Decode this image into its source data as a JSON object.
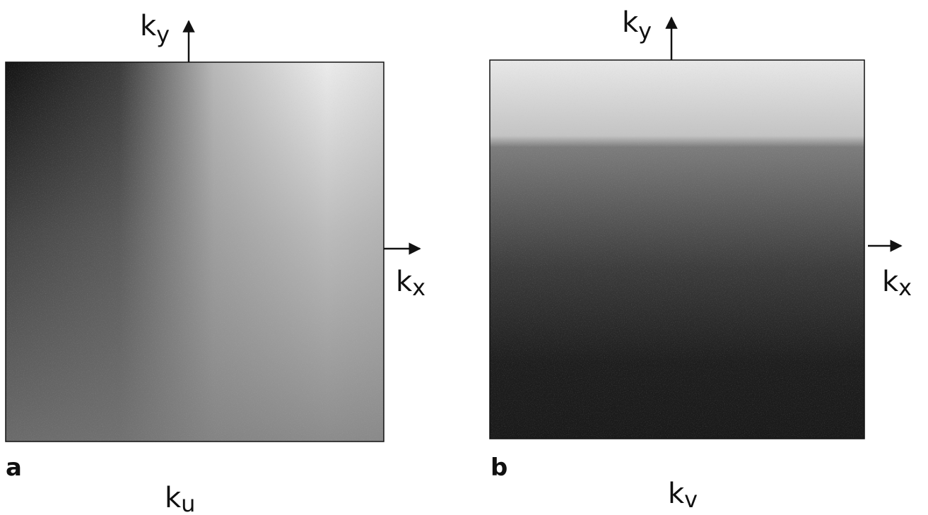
{
  "panel_a": {
    "label": "a",
    "axis_y": {
      "base": "k",
      "sub": "y"
    },
    "axis_x": {
      "base": "k",
      "sub": "x"
    },
    "caption": {
      "base": "k",
      "sub": "u"
    }
  },
  "panel_b": {
    "label": "b",
    "axis_y": {
      "base": "k",
      "sub": "y"
    },
    "axis_x": {
      "base": "k",
      "sub": "x"
    },
    "caption": {
      "base": "k",
      "sub": "v"
    }
  }
}
